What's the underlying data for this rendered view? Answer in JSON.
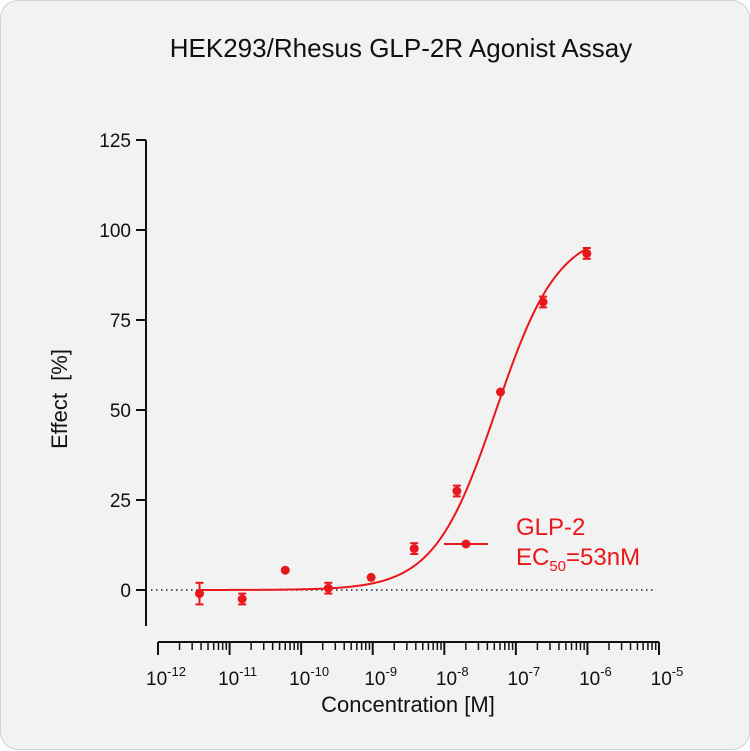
{
  "chart_data": {
    "type": "scatter",
    "title": "HEK293/Rhesus GLP-2R Agonist Assay",
    "xlabel": "Concentration [M]",
    "ylabel": "Effect  [%]",
    "xscale": "log",
    "xlim": [
      1e-12,
      1e-05
    ],
    "ylim": [
      -10,
      125
    ],
    "yticks": [
      0,
      25,
      50,
      75,
      100,
      125
    ],
    "xticks": [
      {
        "value": 1e-12,
        "base": "10",
        "exp": "-12"
      },
      {
        "value": 1e-11,
        "base": "10",
        "exp": "-11"
      },
      {
        "value": 1e-10,
        "base": "10",
        "exp": "-10"
      },
      {
        "value": 1e-09,
        "base": "10",
        "exp": "-9"
      },
      {
        "value": 1e-08,
        "base": "10",
        "exp": "-8"
      },
      {
        "value": 1e-07,
        "base": "10",
        "exp": "-7"
      },
      {
        "value": 1e-06,
        "base": "10",
        "exp": "-6"
      },
      {
        "value": 1e-05,
        "base": "10",
        "exp": "-5"
      }
    ],
    "reference_line": {
      "y": 0,
      "style": "dotted"
    },
    "series": [
      {
        "name": "GLP-2",
        "color": "#e8171c",
        "x": [
          3.8e-12,
          1.5e-11,
          6e-11,
          2.4e-10,
          9.5e-10,
          3.8e-09,
          1.5e-08,
          6.1e-08,
          2.4e-07,
          9.8e-07
        ],
        "y": [
          -1,
          -2.5,
          5.5,
          0.5,
          3.5,
          11.5,
          27.5,
          55,
          80,
          93.5
        ],
        "error": [
          3,
          1.5,
          0,
          1.5,
          0,
          1.5,
          1.5,
          0,
          1.5,
          1.5
        ],
        "fit": {
          "model": "4PL",
          "bottom": 0,
          "top": 100,
          "ec50": 5.3e-08,
          "hill": 1
        },
        "legend": {
          "label": "GLP-2",
          "ec_prefix": "EC",
          "ec_sub": "50",
          "ec_value": "=53nM"
        }
      }
    ]
  }
}
